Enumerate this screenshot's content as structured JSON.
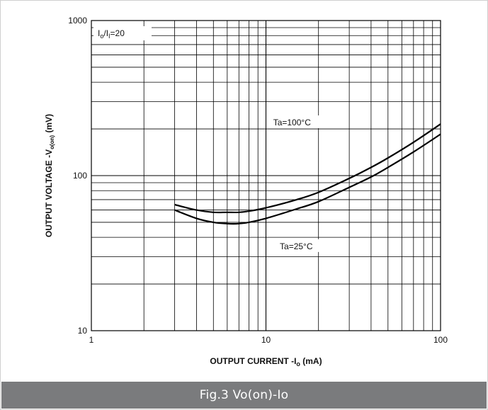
{
  "caption": "Fig.3 Vo(on)-Io",
  "colors": {
    "caption_bg": "#7a7b7d",
    "caption_text": "#ffffff",
    "grid": "#000000",
    "curve": "#000000"
  },
  "chart_data": {
    "type": "line",
    "xscale": "log",
    "yscale": "log",
    "xlim": [
      1,
      100
    ],
    "ylim": [
      10,
      1000
    ],
    "grid": true,
    "x_ticks": [
      {
        "value": 1,
        "label": "1"
      },
      {
        "value": 10,
        "label": "10"
      },
      {
        "value": 100,
        "label": "100"
      }
    ],
    "y_ticks": [
      {
        "value": 10,
        "label": "10"
      },
      {
        "value": 100,
        "label": "100"
      },
      {
        "value": 1000,
        "label": "1000"
      }
    ],
    "xlabel": {
      "main": "OUTPUT CURRENT  -I",
      "sub": "o",
      "tail": " (mA)"
    },
    "ylabel": {
      "main": "OUTPUT VOLTAGE  -V",
      "sub": "o(on)",
      "tail": " (mV)"
    },
    "condition": {
      "i1": "I",
      "s1": "o",
      "mid": "/I",
      "s2": "I",
      "tail": "=20"
    },
    "series": [
      {
        "name": "Ta=100°C",
        "x": [
          3,
          4,
          5,
          6,
          7,
          8,
          10,
          15,
          20,
          30,
          40,
          50,
          70,
          100
        ],
        "y": [
          65,
          60,
          58,
          58,
          58,
          59,
          62,
          70,
          78,
          96,
          113,
          130,
          164,
          215
        ]
      },
      {
        "name": "Ta=25°C",
        "x": [
          3,
          4,
          5,
          6,
          7,
          8,
          10,
          15,
          20,
          30,
          40,
          50,
          70,
          100
        ],
        "y": [
          60,
          53,
          50,
          49,
          49,
          50,
          53,
          61,
          68,
          84,
          98,
          113,
          142,
          185
        ]
      }
    ]
  }
}
